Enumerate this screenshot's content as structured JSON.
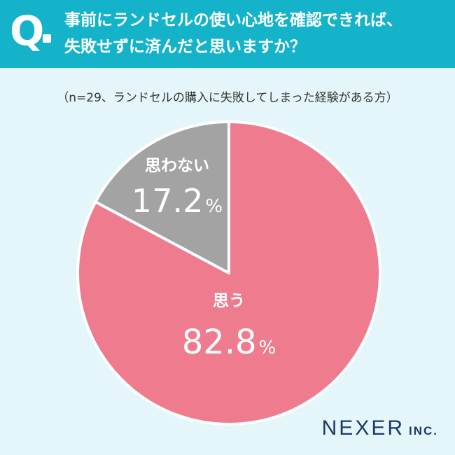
{
  "question": {
    "mark": "Q",
    "line1": "事前にランドセルの使い心地を確認できれば、",
    "line2": "失敗せずに済んだと思いますか？"
  },
  "note": "（n=29、ランドセルの購入に失敗してしまった経験がある方）",
  "colors": {
    "header": "#14b3c9",
    "background": "#e4f6f9",
    "yes": "#ee7c8e",
    "no": "#a3a3a3",
    "logo": "#1d3a68"
  },
  "chart_data": {
    "type": "pie",
    "start": "12 o'clock",
    "direction": "clockwise",
    "slices": [
      {
        "label": "思う",
        "value": 82.8,
        "display": "82.8",
        "unit": "%",
        "color": "#ee7c8e"
      },
      {
        "label": "思わない",
        "value": 17.2,
        "display": "17.2",
        "unit": "%",
        "color": "#a3a3a3"
      }
    ]
  },
  "logo": {
    "main": "NEXER",
    "sub": "INC."
  }
}
